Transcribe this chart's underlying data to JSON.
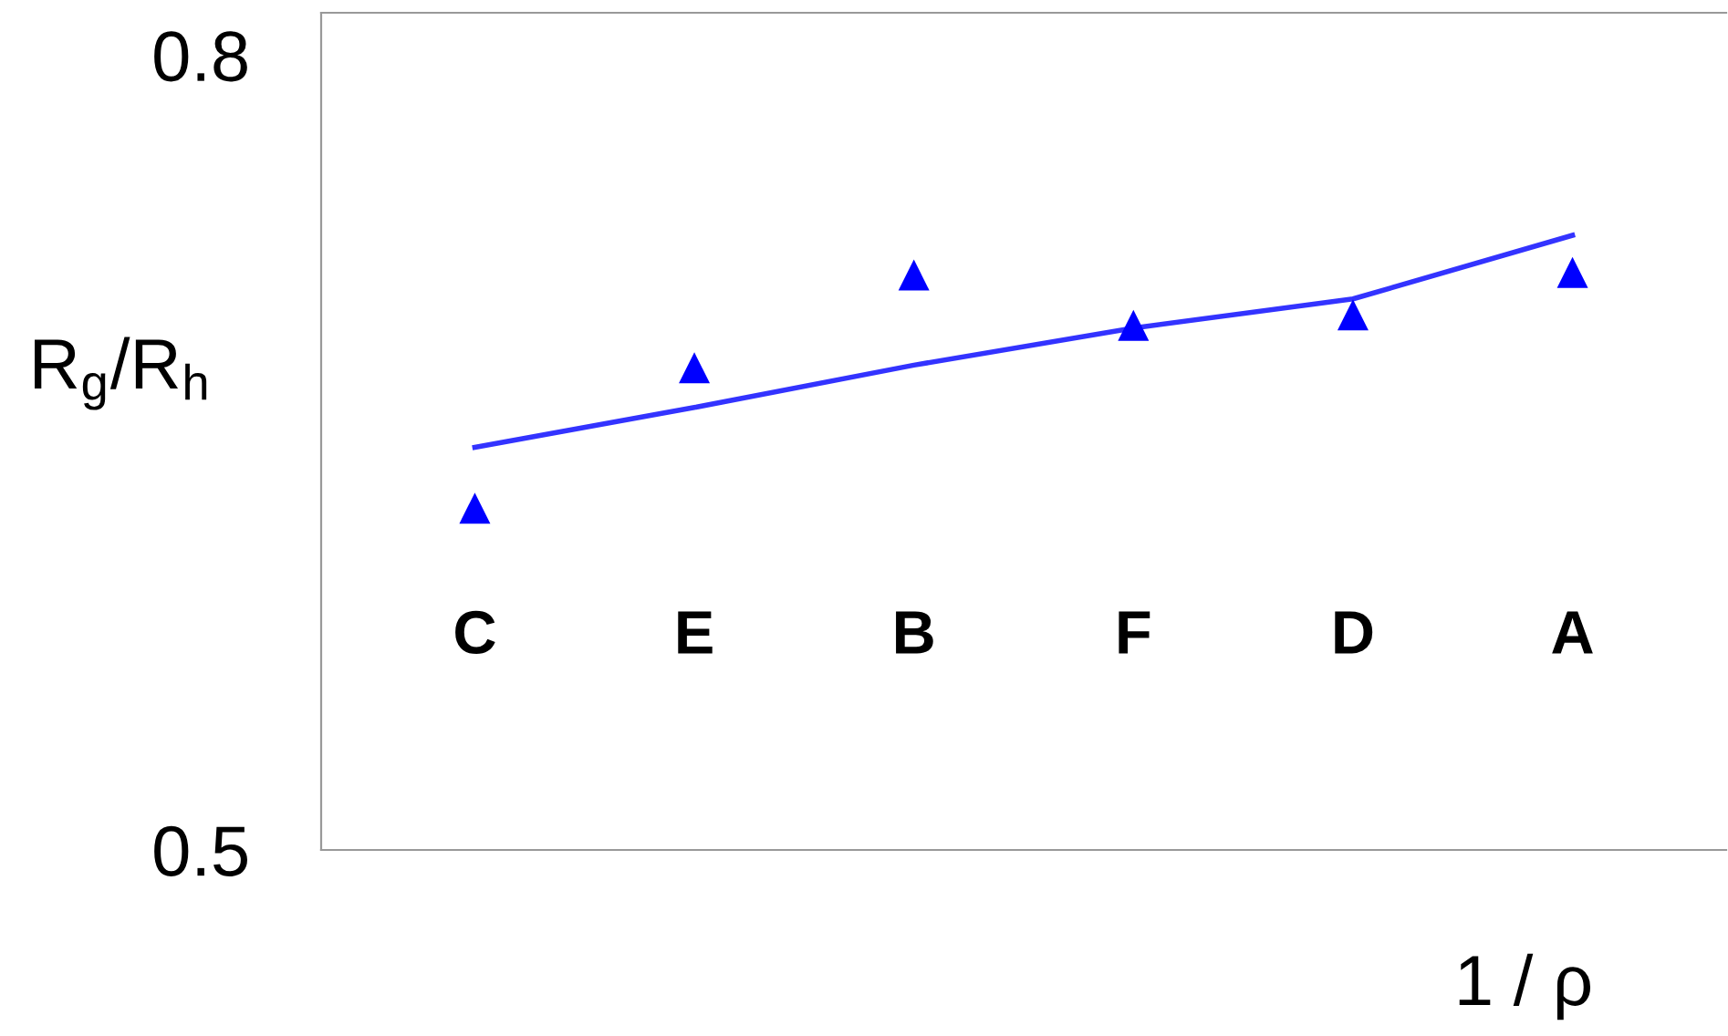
{
  "chart_data": {
    "type": "scatter",
    "xlabel": "1 / ρ",
    "ylabel": "R$_{g}$/R$_{h}$",
    "categories": [
      "C",
      "E",
      "B",
      "F",
      "D",
      "A"
    ],
    "series": [
      {
        "color": "#0000ff",
        "marker": "triangle",
        "values": [
          0.629,
          0.682,
          0.717,
          0.698,
          0.702,
          0.718
        ]
      },
      {
        "type": "line",
        "color": "#3333ff",
        "values": [
          0.652,
          0.667,
          0.683,
          0.697,
          0.708,
          0.732
        ],
        "marker": "none",
        "line_style": "solid"
      }
    ],
    "ylim": [
      0.5,
      0.816
    ],
    "yticks": [
      0.5,
      0.8
    ],
    "grid": false,
    "legend": false
  }
}
